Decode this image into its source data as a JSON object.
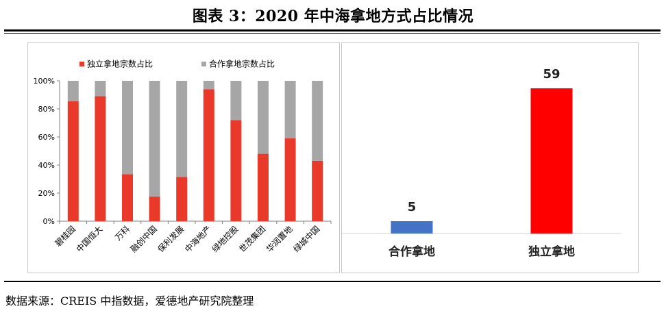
{
  "figure": {
    "title": "图表 3：2020 年中海拿地方式占比情况",
    "source": "数据来源：CREIS 中指数据，爱德地产研究院整理"
  },
  "chart_data": [
    {
      "type": "bar",
      "stacked": true,
      "percent": true,
      "categories": [
        "碧桂园",
        "中国恒大",
        "万科",
        "融创中国",
        "保利发展",
        "中海地产",
        "绿地控股",
        "世茂集团",
        "华润置地",
        "绿城中国"
      ],
      "series": [
        {
          "name": "独立拿地宗数占比",
          "color": "#e8392a",
          "values": [
            85.5,
            89,
            33.5,
            17.5,
            31.5,
            94,
            72,
            48,
            59,
            43
          ]
        },
        {
          "name": "合作拿地宗数占比",
          "color": "#a6a6a6",
          "values": [
            14.5,
            11,
            66.5,
            82.5,
            68.5,
            6,
            28,
            52,
            41,
            57
          ]
        }
      ],
      "ylim": [
        0,
        100
      ],
      "yticks": [
        "0%",
        "20%",
        "40%",
        "60%",
        "80%",
        "100%"
      ],
      "legend": "top-left",
      "grid": false
    },
    {
      "type": "bar",
      "categories": [
        "合作拿地",
        "独立拿地"
      ],
      "values": [
        5,
        59
      ],
      "colors": [
        "#4472c4",
        "#ff0000"
      ],
      "data_labels": [
        "5",
        "59"
      ],
      "ylim": [
        0,
        59
      ],
      "axis_visible": false,
      "grid": false
    }
  ]
}
